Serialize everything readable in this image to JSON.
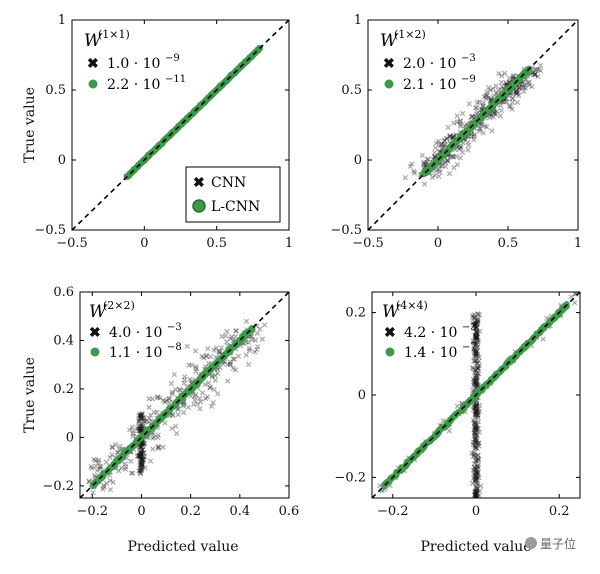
{
  "colors": {
    "cnn": "#111111",
    "lcnn": "#3c9a4a",
    "axis": "#000000",
    "diag": "#000000"
  },
  "icons": {
    "cnn": "cross-marker-icon",
    "lcnn": "circle-marker-icon",
    "watermark": "wechat-icon"
  },
  "legend": {
    "cnn": "CNN",
    "lcnn": "L-CNN",
    "placement": "bottom-right of top-left panel"
  },
  "watermark": "量子位",
  "chart_data": [
    {
      "type": "scatter",
      "id": "w11",
      "xlabel": "",
      "ylabel": "True value",
      "xlim": [
        -0.5,
        1.0
      ],
      "ylim": [
        -0.5,
        1.0
      ],
      "xticks": [
        "−0.5",
        "0",
        "0.5",
        "1"
      ],
      "xtick_vals": [
        -0.5,
        0,
        0.5,
        1
      ],
      "yticks": [
        "−0.5",
        "0",
        "0.5",
        "1"
      ],
      "ytick_vals": [
        -0.5,
        0,
        0.5,
        1
      ],
      "annotation": {
        "label": "W",
        "sup": "(1×1)",
        "cnn": "1.0 · 10",
        "cnn_exp": "−9",
        "lcnn": "2.2 · 10",
        "lcnn_exp": "−11"
      },
      "series": [
        {
          "name": "CNN",
          "range": [
            -0.12,
            0.8
          ],
          "spread": 0.002
        },
        {
          "name": "L-CNN",
          "range": [
            -0.12,
            0.8
          ],
          "spread": 0.002
        }
      ],
      "diagonal": true,
      "grid": false
    },
    {
      "type": "scatter",
      "id": "w12",
      "xlabel": "",
      "ylabel": "",
      "xlim": [
        -0.5,
        1.0
      ],
      "ylim": [
        -0.5,
        1.0
      ],
      "xticks": [
        "−0.5",
        "0",
        "0.5",
        "1"
      ],
      "xtick_vals": [
        -0.5,
        0,
        0.5,
        1
      ],
      "yticks": [
        "−0.5",
        "0",
        "0.5",
        "1"
      ],
      "ytick_vals": [
        -0.5,
        0,
        0.5,
        1
      ],
      "annotation": {
        "label": "W",
        "sup": "(1×2)",
        "cnn": "2.0 · 10",
        "cnn_exp": "−3",
        "lcnn": "2.1 · 10",
        "lcnn_exp": "−9"
      },
      "series": [
        {
          "name": "CNN",
          "range": [
            -0.1,
            0.65
          ],
          "spread": 0.06
        },
        {
          "name": "L-CNN",
          "range": [
            -0.1,
            0.65
          ],
          "spread": 0.004
        }
      ],
      "diagonal": true,
      "grid": false
    },
    {
      "type": "scatter",
      "id": "w22",
      "xlabel": "Predicted value",
      "ylabel": "True value",
      "xlim": [
        -0.25,
        0.6
      ],
      "ylim": [
        -0.25,
        0.6
      ],
      "xticks": [
        "−0.2",
        "0",
        "0.2",
        "0.4",
        "0.6"
      ],
      "xtick_vals": [
        -0.2,
        0,
        0.2,
        0.4,
        0.6
      ],
      "yticks": [
        "−0.2",
        "0",
        "0.2",
        "0.4",
        "0.6"
      ],
      "ytick_vals": [
        -0.2,
        0,
        0.2,
        0.4,
        0.6
      ],
      "annotation": {
        "label": "W",
        "sup": "(2×2)",
        "cnn": "4.0 · 10",
        "cnn_exp": "−3",
        "lcnn": "1.1 · 10",
        "lcnn_exp": "−8"
      },
      "series": [
        {
          "name": "CNN",
          "range": [
            -0.2,
            0.45
          ],
          "spread": 0.06,
          "cluster_x": 0.0
        },
        {
          "name": "L-CNN",
          "range": [
            -0.2,
            0.45
          ],
          "spread": 0.004
        }
      ],
      "diagonal": true,
      "grid": false
    },
    {
      "type": "scatter",
      "id": "w44",
      "xlabel": "Predicted value",
      "ylabel": "",
      "xlim": [
        -0.25,
        0.25
      ],
      "ylim": [
        -0.25,
        0.25
      ],
      "xticks": [
        "−0.2",
        "0",
        "0.2"
      ],
      "xtick_vals": [
        -0.2,
        0,
        0.2
      ],
      "yticks": [
        "−0.2",
        "0",
        "0.2"
      ],
      "ytick_vals": [
        -0.2,
        0,
        0.2
      ],
      "annotation": {
        "label": "W",
        "sup": "(4×4)",
        "cnn": "4.2 · 10",
        "cnn_exp": "−3",
        "lcnn": "1.4 · 10",
        "lcnn_exp": "−7"
      },
      "series": [
        {
          "name": "CNN",
          "range": [
            -0.25,
            0.25
          ],
          "spread": 0.008,
          "cluster_x": 0.0
        },
        {
          "name": "L-CNN",
          "range": [
            -0.22,
            0.22
          ],
          "spread": 0.002
        }
      ],
      "diagonal": true,
      "grid": false
    }
  ]
}
